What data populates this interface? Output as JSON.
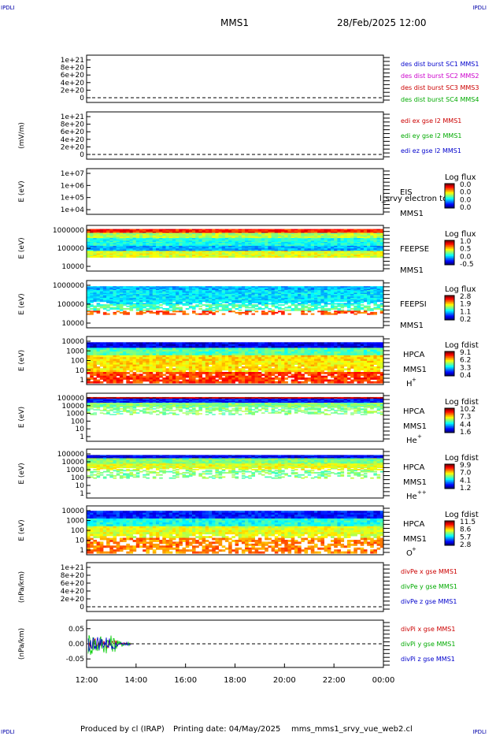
{
  "header": {
    "mission": "MMS1",
    "datetime": "28/Feb/2025 12:00"
  },
  "corners": {
    "tl": "IPDLI",
    "tr": "IPDLI",
    "bl": "IPDLI",
    "br": "IPDLI"
  },
  "footer": {
    "produced": "Produced by cl (IRAP)",
    "printing": "Printing date: 04/May/2025",
    "file": "mms_mms1_srvy_vue_web2.cl"
  },
  "colors": {
    "red": "#cc0000",
    "green": "#00cc00",
    "blue": "#0000cc",
    "magenta": "#cc00cc"
  },
  "x_ticks": [
    "12:00",
    "14:00",
    "16:00",
    "18:00",
    "20:00",
    "22:00",
    "00:00"
  ],
  "chart_data": [
    {
      "type": "line",
      "ylabel": "",
      "ytick_labels": [
        "1e+21",
        "8e+20",
        "6e+20",
        "4e+20",
        "2e+20",
        "0"
      ],
      "legend": [
        {
          "name": "des dist burst SC1 MMS1",
          "color": "#0000cc"
        },
        {
          "name": "des dist burst SC2 MMS2",
          "color": "#cc00cc"
        },
        {
          "name": "des dist burst SC3 MMS3",
          "color": "#cc0000"
        },
        {
          "name": "des dist burst SC4 MMS4",
          "color": "#00aa00"
        }
      ]
    },
    {
      "type": "line",
      "ylabel": "(mV/m)",
      "ytick_labels": [
        "1e+21",
        "8e+20",
        "6e+20",
        "4e+20",
        "2e+20",
        "0"
      ],
      "legend": [
        {
          "name": "edi ex gse l2 MMS1",
          "color": "#cc0000"
        },
        {
          "name": "edi ey gse l2 MMS1",
          "color": "#00aa00"
        },
        {
          "name": "edi ez gse l2 MMS1",
          "color": "#0000cc"
        }
      ]
    },
    {
      "type": "heatmap",
      "ylabel": "E (eV)",
      "ytick_labels": [
        "1e+07",
        "1e+06",
        "1e+05",
        "1e+04"
      ],
      "right_labels": [
        "EIS",
        "MMS1"
      ],
      "overlay_text": "l_srvy electron to",
      "cbar_title": "Log flux",
      "cbar_ticks": [
        "0.0",
        "0.0",
        "0.0",
        "0.0"
      ],
      "empty": true
    },
    {
      "type": "heatmap",
      "ylabel": "E (eV)",
      "ytick_labels": [
        "1000000",
        "100000",
        "10000"
      ],
      "right_labels": [
        "FEEPSE",
        "MMS1"
      ],
      "cbar_title": "Log flux",
      "cbar_ticks": [
        "1.0",
        "0.5",
        "0.0",
        "-0.5"
      ]
    },
    {
      "type": "heatmap",
      "ylabel": "E (eV)",
      "ytick_labels": [
        "1000000",
        "100000",
        "10000"
      ],
      "right_labels": [
        "FEEPSI",
        "MMS1"
      ],
      "cbar_title": "Log flux",
      "cbar_ticks": [
        "2.8",
        "1.9",
        "1.1",
        "0.2"
      ]
    },
    {
      "type": "heatmap",
      "ylabel": "E (eV)",
      "ytick_labels": [
        "10000",
        "1000",
        "100",
        "10",
        "1"
      ],
      "right_labels": [
        "HPCA",
        "MMS1"
      ],
      "species": "H",
      "species_sup": "+",
      "cbar_title": "Log fdist",
      "cbar_ticks": [
        "9.1",
        "6.2",
        "3.3",
        "0.4"
      ]
    },
    {
      "type": "heatmap",
      "ylabel": "E (eV)",
      "ytick_labels": [
        "100000",
        "10000",
        "1000",
        "100",
        "10",
        "1"
      ],
      "right_labels": [
        "HPCA",
        "MMS1"
      ],
      "species": "He",
      "species_sup": "+",
      "cbar_title": "Log fdist",
      "cbar_ticks": [
        "10.2",
        "7.3",
        "4.4",
        "1.6"
      ]
    },
    {
      "type": "heatmap",
      "ylabel": "E (eV)",
      "ytick_labels": [
        "100000",
        "10000",
        "1000",
        "100",
        "10",
        "1"
      ],
      "right_labels": [
        "HPCA",
        "MMS1"
      ],
      "species": "He",
      "species_sup": "++",
      "cbar_title": "Log fdist",
      "cbar_ticks": [
        "9.9",
        "7.0",
        "4.1",
        "1.2"
      ]
    },
    {
      "type": "heatmap",
      "ylabel": "E (eV)",
      "ytick_labels": [
        "10000",
        "1000",
        "100",
        "10",
        "1"
      ],
      "right_labels": [
        "HPCA",
        "MMS1"
      ],
      "species": "O",
      "species_sup": "+",
      "cbar_title": "Log fdist",
      "cbar_ticks": [
        "11.5",
        "8.6",
        "5.7",
        "2.8"
      ]
    },
    {
      "type": "line",
      "ylabel": "(nPa/km)",
      "ytick_labels": [
        "1e+21",
        "8e+20",
        "6e+20",
        "4e+20",
        "2e+20",
        "0"
      ],
      "legend": [
        {
          "name": "divPe x gse MMS1",
          "color": "#cc0000"
        },
        {
          "name": "divPe y gse MMS1",
          "color": "#00aa00"
        },
        {
          "name": "divPe z gse MMS1",
          "color": "#0000cc"
        }
      ]
    },
    {
      "type": "line",
      "ylabel": "(nPa/km)",
      "ytick_labels": [
        "0.05",
        "0.00",
        "-0.05"
      ],
      "ylim": [
        -0.08,
        0.08
      ],
      "legend": [
        {
          "name": "divPi x gse MMS1",
          "color": "#cc0000"
        },
        {
          "name": "divPi y gse MMS1",
          "color": "#00aa00"
        },
        {
          "name": "divPi z gse MMS1",
          "color": "#0000cc"
        }
      ]
    }
  ]
}
